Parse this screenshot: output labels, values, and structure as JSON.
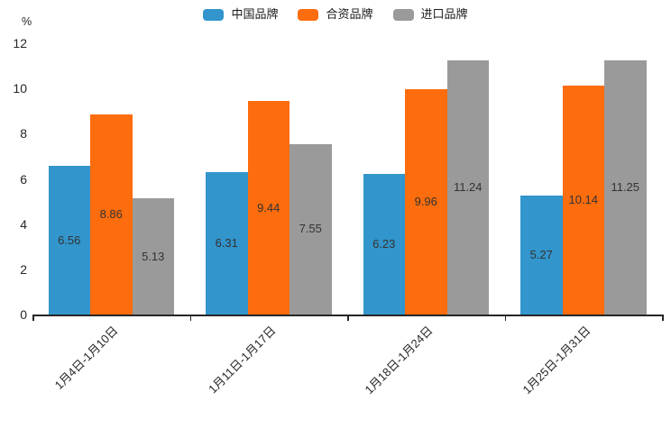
{
  "chart_data": {
    "type": "bar",
    "ylabel": "%",
    "categories": [
      "1月4日-1月10日",
      "1月11日-1月17日",
      "1月18日-1月24日",
      "1月25日-1月31日"
    ],
    "series": [
      {
        "name": "中国品牌",
        "color": "#3295CC",
        "values": [
          6.56,
          6.31,
          6.23,
          5.27
        ]
      },
      {
        "name": "合资品牌",
        "color": "#FD6C0D",
        "values": [
          8.86,
          9.44,
          9.96,
          10.14
        ]
      },
      {
        "name": "进口品牌",
        "color": "#9A9A9A",
        "values": [
          5.13,
          7.55,
          11.24,
          11.25
        ]
      }
    ],
    "ylim": [
      0,
      12
    ],
    "ytick_step": 2,
    "grid": false,
    "legend_position": "top",
    "value_label_decimals": 2,
    "x_label_rotation_deg": 45
  },
  "colors": {
    "axis": "#262626",
    "text": "#333333",
    "background": "#ffffff"
  }
}
